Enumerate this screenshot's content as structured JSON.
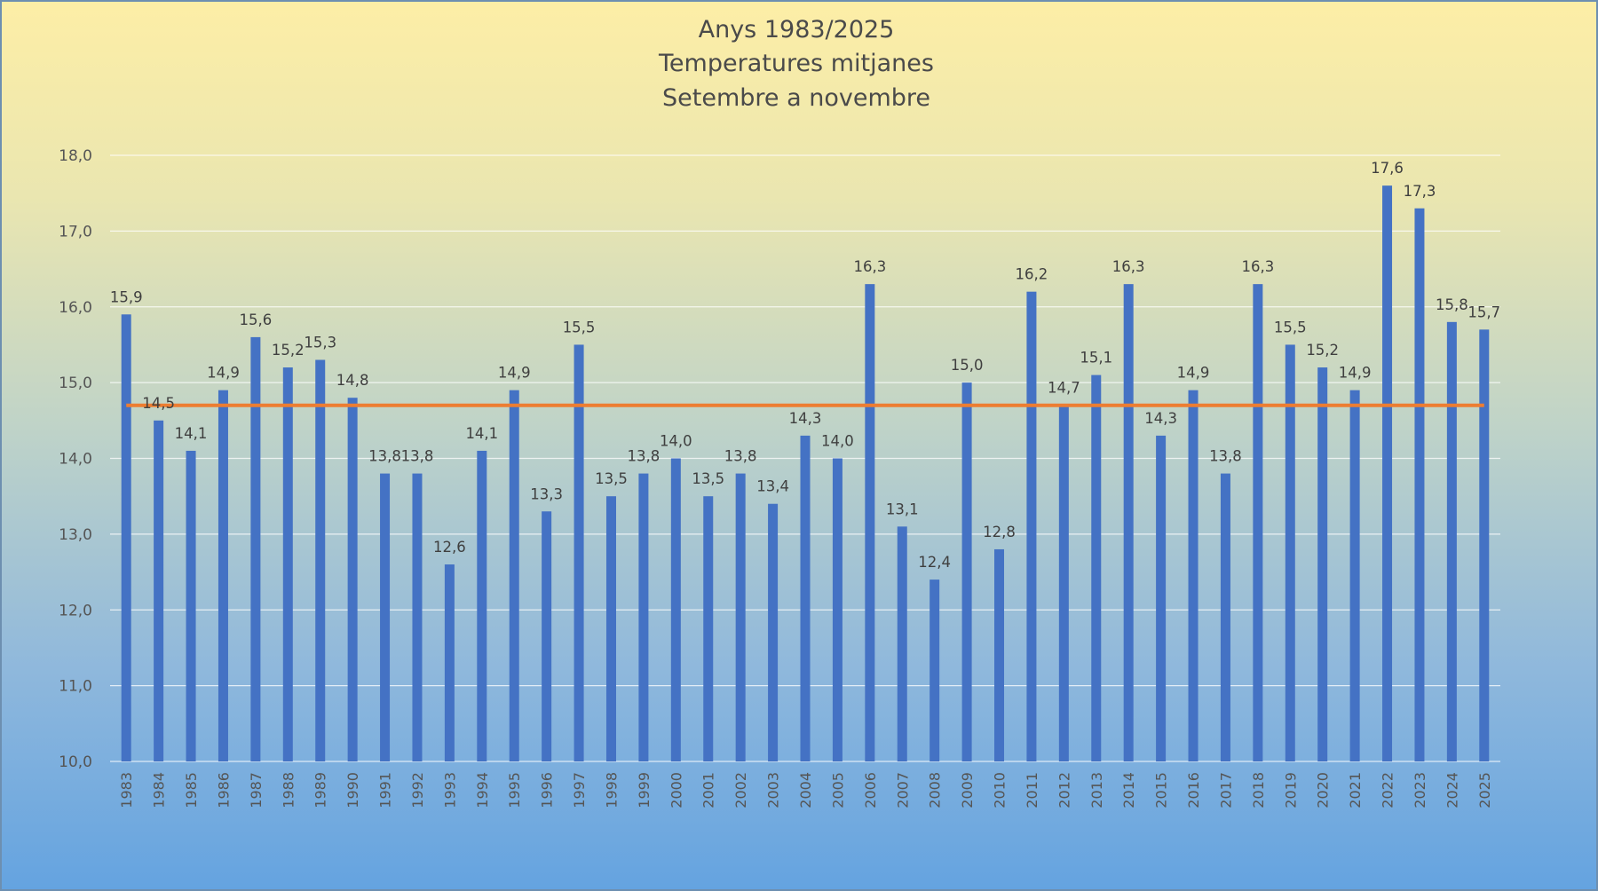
{
  "chart_data": {
    "type": "bar",
    "title": [
      "Anys 1983/2025",
      "Temperatures mitjanes",
      "Setembre a novembre"
    ],
    "xlabel": "",
    "ylabel": "",
    "ylim": [
      10,
      18
    ],
    "yticks": [
      "10,0",
      "11,0",
      "12,0",
      "13,0",
      "14,0",
      "15,0",
      "16,0",
      "17,0",
      "18,0"
    ],
    "grid": true,
    "legend": "none",
    "categories": [
      "1983",
      "1984",
      "1985",
      "1986",
      "1987",
      "1988",
      "1989",
      "1990",
      "1991",
      "1992",
      "1993",
      "1994",
      "1995",
      "1996",
      "1997",
      "1998",
      "1999",
      "2000",
      "2001",
      "2002",
      "2003",
      "2004",
      "2005",
      "2006",
      "2007",
      "2008",
      "2009",
      "2010",
      "2011",
      "2012",
      "2013",
      "2014",
      "2015",
      "2016",
      "2017",
      "2018",
      "2019",
      "2020",
      "2021",
      "2022",
      "2023",
      "2024",
      "2025"
    ],
    "values": [
      15.9,
      14.5,
      14.1,
      14.9,
      15.6,
      15.2,
      15.3,
      14.8,
      13.8,
      13.8,
      12.6,
      14.1,
      14.9,
      13.3,
      15.5,
      13.5,
      13.8,
      14.0,
      13.5,
      13.8,
      13.4,
      14.3,
      14.0,
      16.3,
      13.1,
      12.4,
      15.0,
      12.8,
      16.2,
      14.7,
      15.1,
      16.3,
      14.3,
      14.9,
      13.8,
      16.3,
      15.5,
      15.2,
      14.9,
      17.6,
      17.3,
      15.8,
      15.7
    ],
    "labels": [
      "15,9",
      "14,5",
      "14,1",
      "14,9",
      "15,6",
      "15,2",
      "15,3",
      "14,8",
      "13,8",
      "13,8",
      "12,6",
      "14,1",
      "14,9",
      "13,3",
      "15,5",
      "13,5",
      "13,8",
      "14,0",
      "13,5",
      "13,8",
      "13,4",
      "14,3",
      "14,0",
      "16,3",
      "13,1",
      "12,4",
      "15,0",
      "12,8",
      "16,2",
      "14,7",
      "15,1",
      "16,3",
      "14,3",
      "14,9",
      "13,8",
      "16,3",
      "15,5",
      "15,2",
      "14,9",
      "17,6",
      "17,3",
      "15,8",
      "15,7"
    ],
    "reference_line": {
      "value": 14.7
    },
    "colors": {
      "bars": "#4472c4",
      "reference_line": "#ed7d31"
    }
  }
}
